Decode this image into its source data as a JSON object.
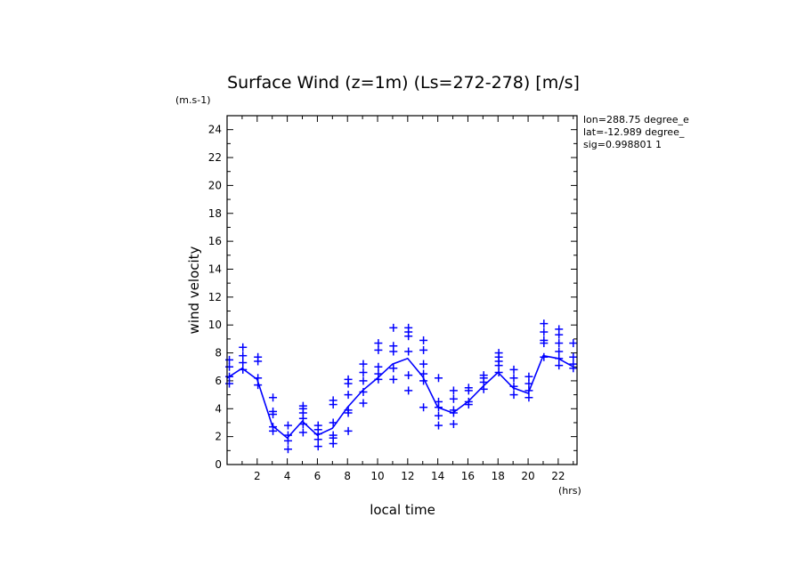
{
  "chart_data": {
    "type": "line",
    "title": "Surface Wind (z=1m) (Ls=272-278) [m/s]",
    "unit_label": "(m.s-1)",
    "xlabel": "local time",
    "xunit": "(hrs)",
    "ylabel": "wind velocity",
    "xlim": [
      0,
      23.25
    ],
    "ylim": [
      0,
      25
    ],
    "xticks": [
      2,
      4,
      6,
      8,
      10,
      12,
      14,
      16,
      18,
      20,
      22
    ],
    "yticks": [
      0,
      2,
      4,
      6,
      8,
      10,
      12,
      14,
      16,
      18,
      20,
      22,
      24
    ],
    "info": [
      "lon=288.75 degree_e",
      "lat=-12.989 degree_",
      "sig=0.998801 1"
    ],
    "colors": {
      "series": "#0000ff",
      "axes": "#000000"
    },
    "series": [
      {
        "marker": "line",
        "x": [
          0,
          1.0,
          2.0,
          3.0,
          4.0,
          5.0,
          6.0,
          7.0,
          8.0,
          9.0,
          10.0,
          11.0,
          12.0,
          13.0,
          14.0,
          15.0,
          16.0,
          17.0,
          18.0,
          19.0,
          20.0,
          21.0,
          22.0,
          23.0
        ],
        "y": [
          6.2,
          6.9,
          6.1,
          2.8,
          1.9,
          3.1,
          2.1,
          2.6,
          4.1,
          5.3,
          6.2,
          7.2,
          7.6,
          6.3,
          4.1,
          3.7,
          4.5,
          5.6,
          6.6,
          5.5,
          5.1,
          7.8,
          7.6,
          7.0
        ]
      },
      {
        "marker": "plus",
        "points": [
          [
            0.15,
            5.8
          ],
          [
            0.15,
            6.3
          ],
          [
            0.15,
            7.0
          ],
          [
            0.15,
            7.5
          ],
          [
            1.05,
            6.8
          ],
          [
            1.05,
            7.3
          ],
          [
            1.05,
            7.8
          ],
          [
            1.05,
            8.4
          ],
          [
            2.05,
            5.7
          ],
          [
            2.05,
            6.2
          ],
          [
            2.05,
            7.4
          ],
          [
            2.05,
            7.7
          ],
          [
            3.05,
            2.4
          ],
          [
            3.05,
            2.7
          ],
          [
            3.05,
            3.6
          ],
          [
            3.05,
            3.8
          ],
          [
            3.05,
            4.8
          ],
          [
            4.05,
            1.1
          ],
          [
            4.05,
            1.7
          ],
          [
            4.05,
            2.1
          ],
          [
            4.05,
            2.8
          ],
          [
            5.05,
            2.3
          ],
          [
            5.05,
            2.9
          ],
          [
            5.05,
            3.3
          ],
          [
            5.05,
            3.7
          ],
          [
            5.05,
            4.0
          ],
          [
            5.05,
            4.2
          ],
          [
            6.05,
            1.3
          ],
          [
            6.05,
            1.8
          ],
          [
            6.05,
            2.2
          ],
          [
            6.05,
            2.5
          ],
          [
            6.05,
            2.8
          ],
          [
            7.05,
            1.5
          ],
          [
            7.05,
            1.9
          ],
          [
            7.05,
            2.1
          ],
          [
            7.05,
            3.0
          ],
          [
            7.05,
            4.3
          ],
          [
            7.05,
            4.6
          ],
          [
            8.05,
            2.4
          ],
          [
            8.05,
            3.7
          ],
          [
            8.05,
            3.9
          ],
          [
            8.05,
            5.0
          ],
          [
            8.05,
            5.8
          ],
          [
            8.05,
            6.1
          ],
          [
            9.05,
            4.4
          ],
          [
            9.05,
            5.2
          ],
          [
            9.05,
            6.0
          ],
          [
            9.05,
            6.6
          ],
          [
            9.05,
            7.2
          ],
          [
            10.05,
            6.1
          ],
          [
            10.05,
            6.5
          ],
          [
            10.05,
            7.0
          ],
          [
            10.05,
            8.2
          ],
          [
            10.05,
            8.7
          ],
          [
            11.05,
            6.1
          ],
          [
            11.05,
            6.9
          ],
          [
            11.05,
            8.1
          ],
          [
            11.05,
            8.5
          ],
          [
            11.05,
            9.8
          ],
          [
            12.05,
            5.3
          ],
          [
            12.05,
            6.4
          ],
          [
            12.05,
            8.1
          ],
          [
            12.05,
            9.2
          ],
          [
            12.05,
            9.5
          ],
          [
            12.05,
            9.8
          ],
          [
            13.05,
            4.1
          ],
          [
            13.05,
            6.0
          ],
          [
            13.05,
            6.5
          ],
          [
            13.05,
            7.2
          ],
          [
            13.05,
            8.2
          ],
          [
            13.05,
            8.9
          ],
          [
            14.05,
            2.8
          ],
          [
            14.05,
            3.5
          ],
          [
            14.05,
            4.1
          ],
          [
            14.05,
            4.5
          ],
          [
            14.05,
            6.2
          ],
          [
            15.05,
            2.9
          ],
          [
            15.05,
            3.7
          ],
          [
            15.05,
            3.9
          ],
          [
            15.05,
            4.7
          ],
          [
            15.05,
            5.3
          ],
          [
            16.05,
            4.3
          ],
          [
            16.05,
            4.5
          ],
          [
            16.05,
            5.3
          ],
          [
            16.05,
            5.5
          ],
          [
            17.05,
            5.4
          ],
          [
            17.05,
            5.9
          ],
          [
            17.05,
            6.2
          ],
          [
            17.05,
            6.4
          ],
          [
            18.05,
            6.6
          ],
          [
            18.05,
            7.1
          ],
          [
            18.05,
            7.4
          ],
          [
            18.05,
            7.7
          ],
          [
            18.05,
            8.0
          ],
          [
            19.05,
            5.0
          ],
          [
            19.05,
            5.6
          ],
          [
            19.05,
            6.2
          ],
          [
            19.05,
            6.8
          ],
          [
            20.05,
            4.8
          ],
          [
            20.05,
            5.3
          ],
          [
            20.05,
            5.8
          ],
          [
            20.05,
            6.3
          ],
          [
            21.05,
            7.7
          ],
          [
            21.05,
            8.7
          ],
          [
            21.05,
            8.9
          ],
          [
            21.05,
            9.5
          ],
          [
            21.05,
            10.1
          ],
          [
            22.05,
            7.1
          ],
          [
            22.05,
            7.6
          ],
          [
            22.05,
            8.1
          ],
          [
            22.05,
            8.7
          ],
          [
            22.05,
            9.3
          ],
          [
            22.05,
            9.7
          ],
          [
            23.0,
            6.9
          ],
          [
            23.0,
            7.2
          ],
          [
            23.0,
            7.7
          ],
          [
            23.0,
            8.7
          ]
        ]
      }
    ],
    "grid": false,
    "legend": "none"
  }
}
